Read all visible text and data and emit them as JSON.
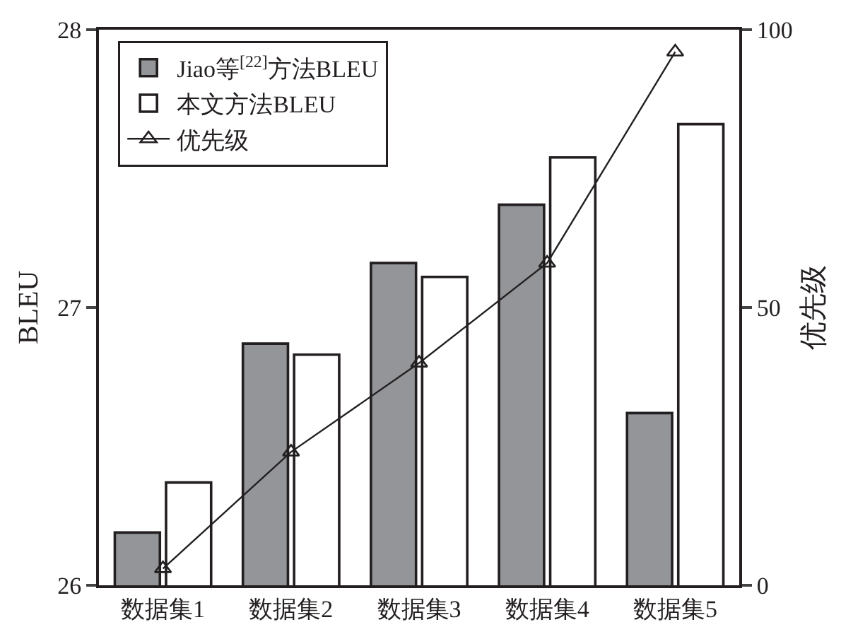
{
  "chart_data": {
    "type": "bar",
    "categories": [
      "数据集1",
      "数据集2",
      "数据集3",
      "数据集4",
      "数据集5"
    ],
    "ylabel": "BLEU",
    "y2label": "优先级",
    "series": [
      {
        "name": "Jiao等$^{[22]}$方法BLEU",
        "color": "#939598",
        "values": [
          26.19,
          26.87,
          27.16,
          27.37,
          26.62
        ]
      },
      {
        "name": "本文方法BLEU",
        "color": "#ffffff",
        "values": [
          26.37,
          26.83,
          27.11,
          27.54,
          27.66
        ]
      },
      {
        "name": "优先级",
        "type": "line",
        "axis": "y2",
        "color": "#231f20",
        "marker": "triangle",
        "values": [
          3,
          24,
          40,
          58,
          96
        ]
      }
    ],
    "ylim": [
      26,
      28
    ],
    "yticks": [
      26,
      27,
      28
    ],
    "y2lim": [
      0,
      100
    ],
    "y2ticks": [
      0,
      50,
      100
    ],
    "legend": "top left"
  }
}
